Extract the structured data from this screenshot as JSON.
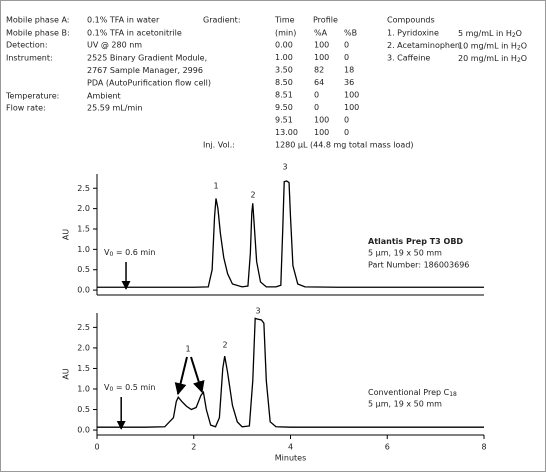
{
  "conditions": {
    "rows": [
      {
        "label": "Mobile phase A:",
        "value": [
          "0.1% TFA in water"
        ]
      },
      {
        "label": "Mobile phase B:",
        "value": [
          "0.1% TFA in acetonitrile"
        ]
      },
      {
        "label": "Detection:",
        "value": [
          "UV @ 280 nm"
        ]
      },
      {
        "label": "Instrument:",
        "value": [
          "2525 Binary Gradient Module,",
          "2767 Sample Manager, 2996",
          "PDA (AutoPurification flow cell)"
        ]
      },
      {
        "label": "Temperature:",
        "value": [
          "Ambient"
        ]
      },
      {
        "label": "Flow rate:",
        "value": [
          "25.59 mL/min"
        ]
      }
    ],
    "gradient": {
      "label": "Gradient:",
      "time_header": "Time",
      "profile_header": "Profile",
      "columns": [
        "(min)",
        "%A",
        "%B"
      ],
      "rows": [
        [
          "0.00",
          "100",
          "0"
        ],
        [
          "1.00",
          "100",
          "0"
        ],
        [
          "3.50",
          "82",
          "18"
        ],
        [
          "8.50",
          "64",
          "36"
        ],
        [
          "8.51",
          "0",
          "100"
        ],
        [
          "9.50",
          "0",
          "100"
        ],
        [
          "9.51",
          "100",
          "0"
        ],
        [
          "13.00",
          "100",
          "0"
        ]
      ]
    },
    "injection": {
      "label": "Inj. Vol.:",
      "value": "1280 µL (44.8 mg total mass load)"
    },
    "compounds": {
      "title": "Compounds",
      "items": [
        {
          "name": "1. Pyridoxine",
          "amount": "5 mg/mL in H",
          "sub": "2",
          "tail": "O"
        },
        {
          "name": "2. Acetaminophen",
          "amount": "10 mg/mL in H",
          "sub": "2",
          "tail": "O"
        },
        {
          "name": "3. Caffeine",
          "amount": "20 mg/mL in H",
          "sub": "2",
          "tail": "O"
        }
      ]
    }
  },
  "chart_data": [
    {
      "type": "line",
      "ylabel": "AU",
      "xlim": [
        0,
        8
      ],
      "ylim": [
        -0.12,
        2.85
      ],
      "yticks": [
        {
          "value": 0,
          "label": "0.0"
        },
        0.5,
        {
          "value": 1,
          "label": "1.0"
        },
        1.5,
        {
          "value": 2,
          "label": "2.0"
        },
        2.5
      ],
      "x": [
        0,
        0.5,
        1,
        1.5,
        2,
        2.3,
        2.38,
        2.43,
        2.46,
        2.5,
        2.55,
        2.62,
        2.7,
        2.8,
        3.0,
        3.12,
        3.17,
        3.2,
        3.22,
        3.25,
        3.3,
        3.38,
        3.5,
        3.7,
        3.8,
        3.84,
        3.87,
        3.92,
        3.97,
        4.0,
        4.05,
        4.15,
        4.3,
        5,
        6,
        7,
        8
      ],
      "series": [
        {
          "color": "#000000",
          "values": [
            0.07,
            0.07,
            0.07,
            0.07,
            0.07,
            0.08,
            0.5,
            1.8,
            2.25,
            2.0,
            1.4,
            0.8,
            0.4,
            0.15,
            0.08,
            0.1,
            0.9,
            1.9,
            2.13,
            1.6,
            0.7,
            0.2,
            0.08,
            0.08,
            0.12,
            1.5,
            2.66,
            2.68,
            2.64,
            1.8,
            0.6,
            0.15,
            0.08,
            0.07,
            0.07,
            0.07,
            0.07
          ]
        }
      ],
      "peak_labels": [
        "1",
        "2",
        "3"
      ],
      "void_time": 0.6,
      "void_label": {
        "main": "V",
        "sub": "0",
        "tail": " = 0.6 min"
      },
      "column_info": {
        "name": "Atlantis Prep T3 OBD",
        "lines": [
          "5 µm, 19 x 50 mm",
          "Part Number: 186003696"
        ]
      }
    },
    {
      "type": "line",
      "ylabel": "AU",
      "xlabel": "Minutes",
      "xlim": [
        0,
        8
      ],
      "xticks": [
        0,
        2,
        4,
        6,
        8
      ],
      "ylim": [
        -0.12,
        2.85
      ],
      "yticks": [
        {
          "value": 0,
          "label": "0.0"
        },
        0.5,
        {
          "value": 1,
          "label": "1.0"
        },
        1.5,
        {
          "value": 2,
          "label": "2.0"
        },
        2.5
      ],
      "x": [
        0,
        0.5,
        1,
        1.4,
        1.58,
        1.64,
        1.68,
        1.75,
        1.85,
        1.95,
        2.05,
        2.15,
        2.2,
        2.26,
        2.35,
        2.45,
        2.53,
        2.6,
        2.64,
        2.7,
        2.8,
        2.9,
        3.0,
        3.15,
        3.22,
        3.27,
        3.32,
        3.4,
        3.45,
        3.5,
        3.58,
        3.7,
        4,
        5,
        6,
        7,
        8
      ],
      "series": [
        {
          "color": "#000000",
          "values": [
            0.07,
            0.07,
            0.07,
            0.08,
            0.3,
            0.7,
            0.8,
            0.7,
            0.58,
            0.5,
            0.55,
            0.85,
            0.92,
            0.5,
            0.12,
            0.08,
            0.3,
            1.5,
            1.8,
            1.4,
            0.6,
            0.2,
            0.08,
            0.1,
            1.2,
            2.72,
            2.7,
            2.68,
            2.6,
            1.2,
            0.2,
            0.08,
            0.07,
            0.07,
            0.07,
            0.07,
            0.07
          ]
        }
      ],
      "peak_labels": [
        "1",
        "2",
        "3"
      ],
      "void_time": 0.5,
      "void_label": {
        "main": "V",
        "sub": "0",
        "tail": " = 0.5 min"
      },
      "column_info": {
        "name": "Conventional Prep C",
        "name_sub": "18",
        "lines": [
          "5 µm, 19 x 50 mm"
        ]
      }
    }
  ]
}
